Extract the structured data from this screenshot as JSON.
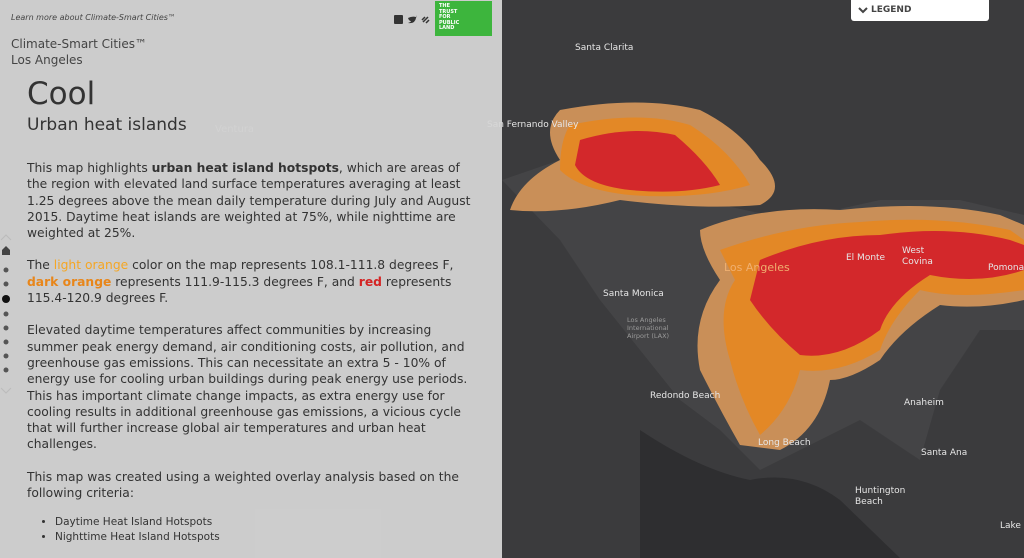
{
  "header": {
    "link": "Learn more about Climate-Smart Cities™",
    "title": "Climate-Smart Cities™",
    "subtitle": "Los Angeles",
    "logo": [
      "THE",
      "TRUST",
      "FOR",
      "PUBLIC",
      "LAND"
    ]
  },
  "section": {
    "title": "Cool",
    "subtitle": "Urban heat islands",
    "paragraphs": [
      [
        "This map highlights ",
        "urban heat island hotspots",
        ", which are areas of the region with elevated land surface temperatures averaging at least 1.25 degrees above the mean daily temperature during July and August 2015. Daytime heat islands are weighted at 75%, while nighttime are weighted at 25%."
      ],
      [
        "The ",
        "light orange",
        " color on the map represents 108.1-111.8 degrees F, ",
        "dark orange",
        " represents 111.9-115.3 degrees F, and ",
        "red",
        " represents 115.4-120.9 degrees F."
      ],
      [
        "Elevated daytime temperatures affect communities by increasing summer peak energy demand, air conditioning costs, air pollution, and greenhouse gas emissions. This can necessitate an extra 5 - 10% of energy use for cooling urban buildings during peak energy use periods. This has important climate change impacts, as extra energy use for cooling results in additional greenhouse gas emissions, a vicious cycle that will further increase global air temperatures and urban heat challenges."
      ],
      [
        "This map was created using a weighted overlay analysis based on the following criteria:"
      ]
    ],
    "list": [
      "Daytime Heat Island Hotspots",
      "Nighttime Heat Island Hotspots"
    ]
  },
  "map": {
    "legend_button": "LEGEND",
    "labels": [
      [
        "Santa Clarita"
      ],
      [
        "San Fernando Valley"
      ],
      [
        "Ventura"
      ],
      [
        "Los Angeles"
      ],
      [
        "El Monte"
      ],
      [
        "West",
        "Covina"
      ],
      [
        "Pomona"
      ],
      [
        "Santa Monica"
      ],
      [
        "Los Angeles",
        "International",
        "Airport (LAX)"
      ],
      [
        "Redondo Beach"
      ],
      [
        "Long Beach"
      ],
      [
        "Anaheim"
      ],
      [
        "Santa Ana"
      ],
      [
        "Huntington",
        "Beach"
      ],
      [
        "Lake Forest"
      ]
    ]
  }
}
